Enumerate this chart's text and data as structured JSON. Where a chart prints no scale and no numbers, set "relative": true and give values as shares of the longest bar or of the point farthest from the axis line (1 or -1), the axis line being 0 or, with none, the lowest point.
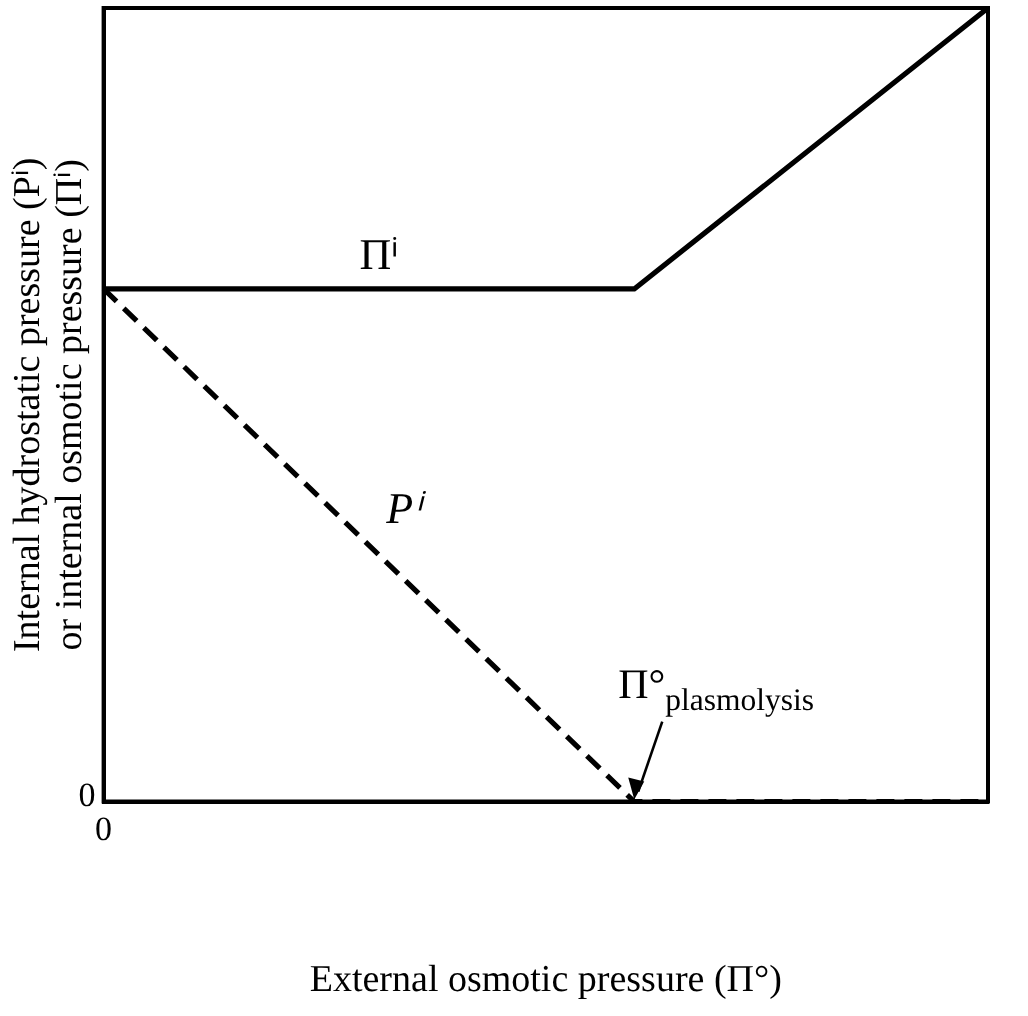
{
  "chart_data": {
    "type": "line",
    "relative": true,
    "xlabel": "External osmotic pressure (Π°)",
    "ylabel": "Internal hydrostatic pressure (Pⁱ)\nor internal osmotic pressure (Πⁱ)",
    "categories": [
      null,
      null,
      null,
      null,
      null,
      null
    ],
    "legend": false,
    "marker": "none",
    "series": [
      {
        "name": "Πⁱ",
        "color": "#000000",
        "line_style": "solid",
        "values": [
          0.646,
          null,
          null,
          0.646,
          null,
          1
        ]
      },
      {
        "name": "Pⁱ",
        "color": "#000000",
        "line_style": "dashed",
        "values": [
          0.646,
          null,
          null,
          0,
          null,
          0
        ]
      }
    ],
    "annotations": [
      {
        "text": "Π°$_{plasmolysis}$",
        "y": 0
      },
      "0",
      "0"
    ]
  }
}
